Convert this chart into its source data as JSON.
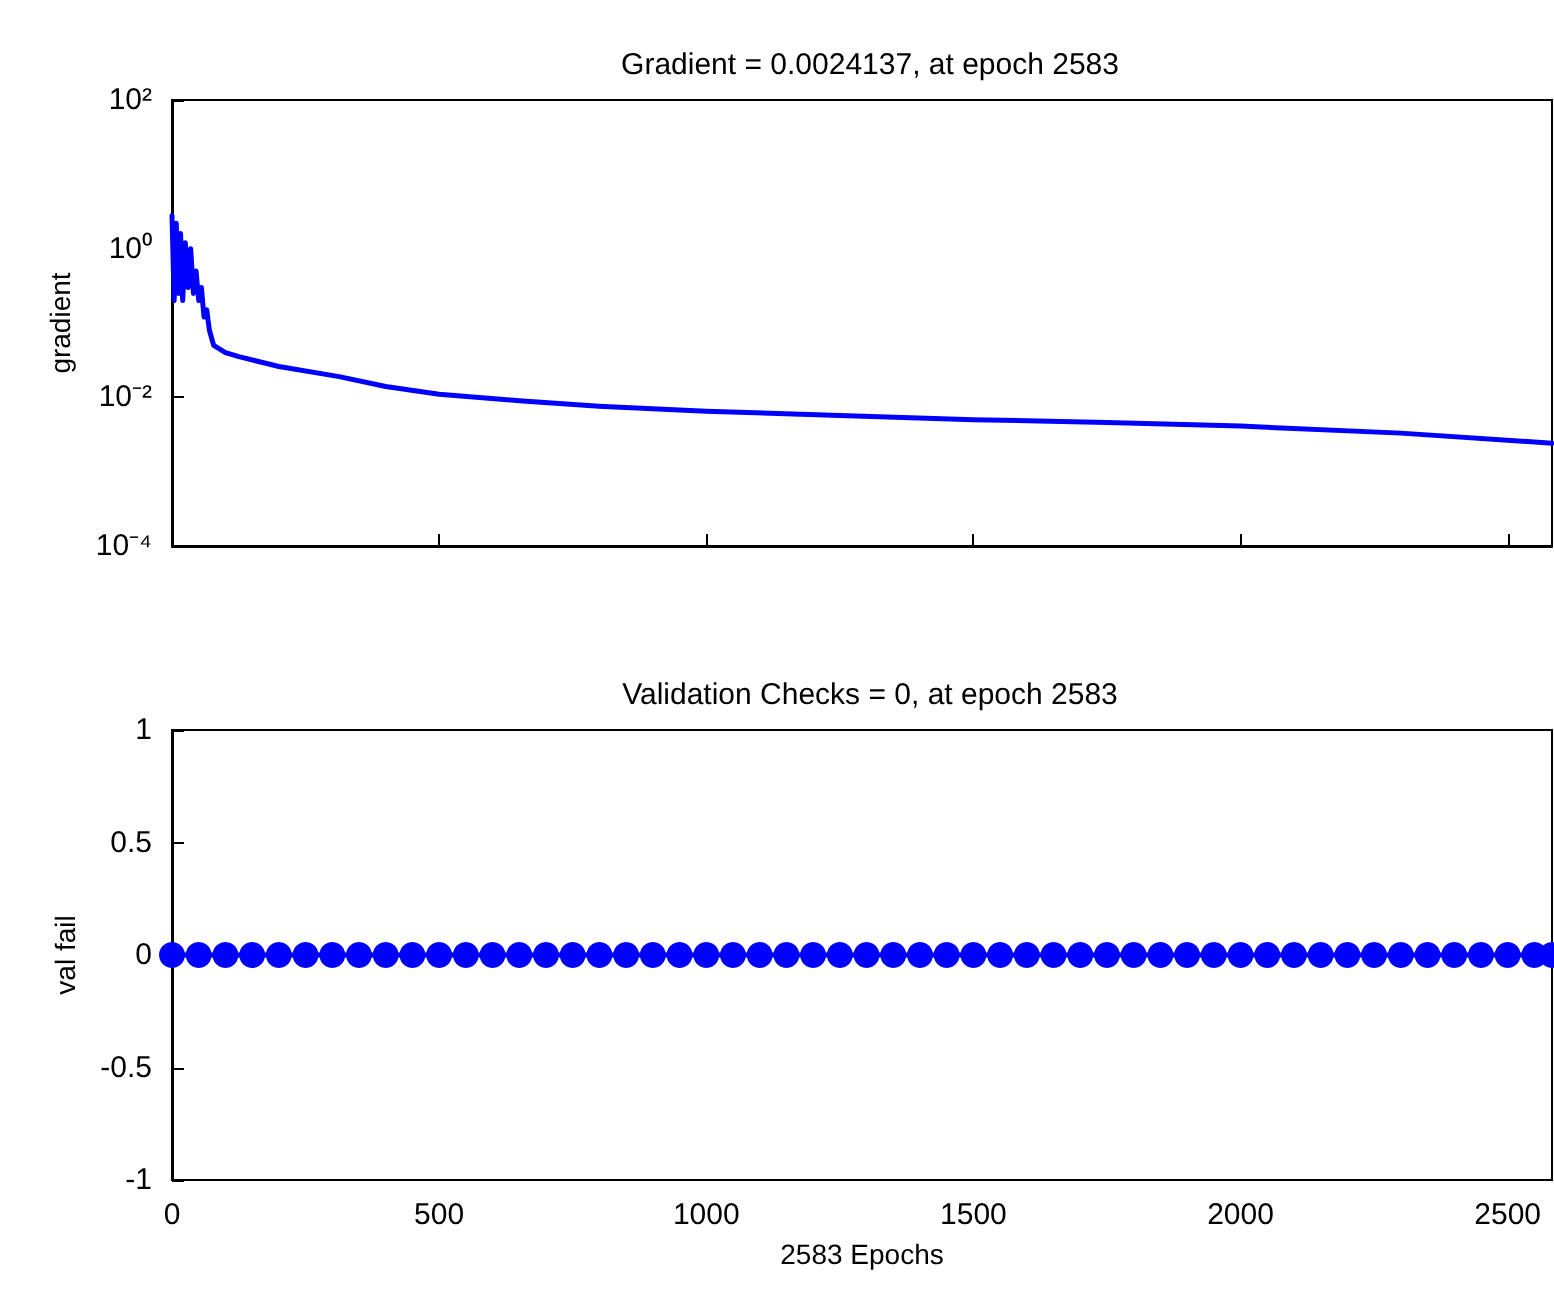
{
  "chart_data": [
    {
      "type": "line",
      "title": "Gradient = 0.0024137, at epoch 2583",
      "ylabel": "gradient",
      "log": "y",
      "xlim": [
        0,
        2583
      ],
      "xticks": [
        0,
        500,
        1000,
        1500,
        2000,
        2500
      ],
      "ylim": [
        0.0001,
        100
      ],
      "yticks": [
        {
          "value": 100,
          "label": "10²"
        },
        {
          "value": 1,
          "label": "10⁰"
        },
        {
          "value": 0.01,
          "label": "10⁻²"
        },
        {
          "value": 0.0001,
          "label": "10⁻⁴"
        }
      ],
      "tick_labels": "y",
      "series": [
        {
          "color": "#0000ff",
          "marker": "none",
          "x": [
            0,
            4,
            8,
            12,
            16,
            20,
            25,
            30,
            35,
            40,
            45,
            50,
            55,
            60,
            65,
            70,
            78,
            100,
            127,
            200,
            313,
            400,
            500,
            650,
            799,
            1000,
            1250,
            1500,
            1750,
            2000,
            2300,
            2583
          ],
          "values": [
            2.8,
            0.2,
            2.2,
            0.25,
            1.6,
            0.2,
            1.2,
            0.3,
            1.0,
            0.25,
            0.5,
            0.2,
            0.3,
            0.12,
            0.15,
            0.08,
            0.05,
            0.04,
            0.035,
            0.026,
            0.019,
            0.014,
            0.011,
            0.009,
            0.0076,
            0.0065,
            0.0057,
            0.005,
            0.0046,
            0.0041,
            0.0033,
            0.0024137
          ]
        }
      ]
    },
    {
      "type": "line",
      "title": "Validation Checks = 0, at epoch 2583",
      "xlabel": "2583 Epochs",
      "ylabel": "val fail",
      "xlim": [
        0,
        2583
      ],
      "xticks": [
        0,
        500,
        1000,
        1500,
        2000,
        2500
      ],
      "ylim": [
        -1,
        1
      ],
      "yticks": [
        -1,
        -0.5,
        0,
        0.5,
        1
      ],
      "series": [
        {
          "color": "#0000ff",
          "marker": "circle",
          "x": [
            0,
            50,
            100,
            150,
            200,
            250,
            300,
            350,
            400,
            450,
            500,
            550,
            600,
            650,
            700,
            750,
            800,
            850,
            900,
            950,
            1000,
            1050,
            1100,
            1150,
            1200,
            1250,
            1300,
            1350,
            1400,
            1450,
            1500,
            1550,
            1600,
            1650,
            1700,
            1750,
            1800,
            1850,
            1900,
            1950,
            2000,
            2050,
            2100,
            2150,
            2200,
            2250,
            2300,
            2350,
            2400,
            2450,
            2500,
            2550,
            2583
          ],
          "values": [
            0,
            0,
            0,
            0,
            0,
            0,
            0,
            0,
            0,
            0,
            0,
            0,
            0,
            0,
            0,
            0,
            0,
            0,
            0,
            0,
            0,
            0,
            0,
            0,
            0,
            0,
            0,
            0,
            0,
            0,
            0,
            0,
            0,
            0,
            0,
            0,
            0,
            0,
            0,
            0,
            0,
            0,
            0,
            0,
            0,
            0,
            0,
            0,
            0,
            0,
            0,
            0,
            0
          ]
        }
      ]
    }
  ]
}
